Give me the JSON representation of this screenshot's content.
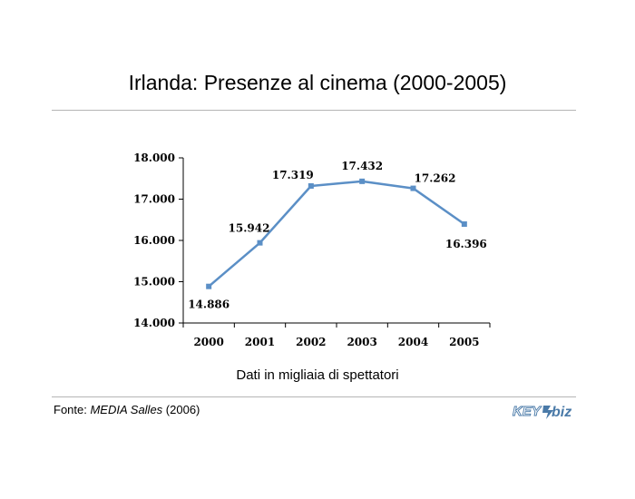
{
  "title": "Irlanda: Presenze al cinema (2000-2005)",
  "caption": "Dati in migliaia di spettatori",
  "source": {
    "prefix": "Fonte: ",
    "name": "MEDIA Salles",
    "suffix": " (2006)"
  },
  "logo": {
    "part1": "KEY",
    "part2": "biz",
    "color": "#4a7aa8"
  },
  "colors": {
    "line": "#5b8fc6",
    "axis": "#000000"
  },
  "chart_data": {
    "type": "line",
    "title": "",
    "xlabel": "",
    "ylabel": "",
    "categories": [
      "2000",
      "2001",
      "2002",
      "2003",
      "2004",
      "2005"
    ],
    "series": [
      {
        "values": [
          14886,
          15942,
          17319,
          17432,
          17262,
          16396
        ],
        "labels": [
          "14.886",
          "15.942",
          "17.319",
          "17.432",
          "17.262",
          "16.396"
        ]
      }
    ],
    "ylim": [
      14000,
      18000
    ],
    "yticks": [
      14000,
      15000,
      16000,
      17000,
      18000
    ],
    "ytick_labels": [
      "14.000",
      "15.000",
      "16.000",
      "17.000",
      "18.000"
    ],
    "grid": false,
    "legend": "none"
  }
}
